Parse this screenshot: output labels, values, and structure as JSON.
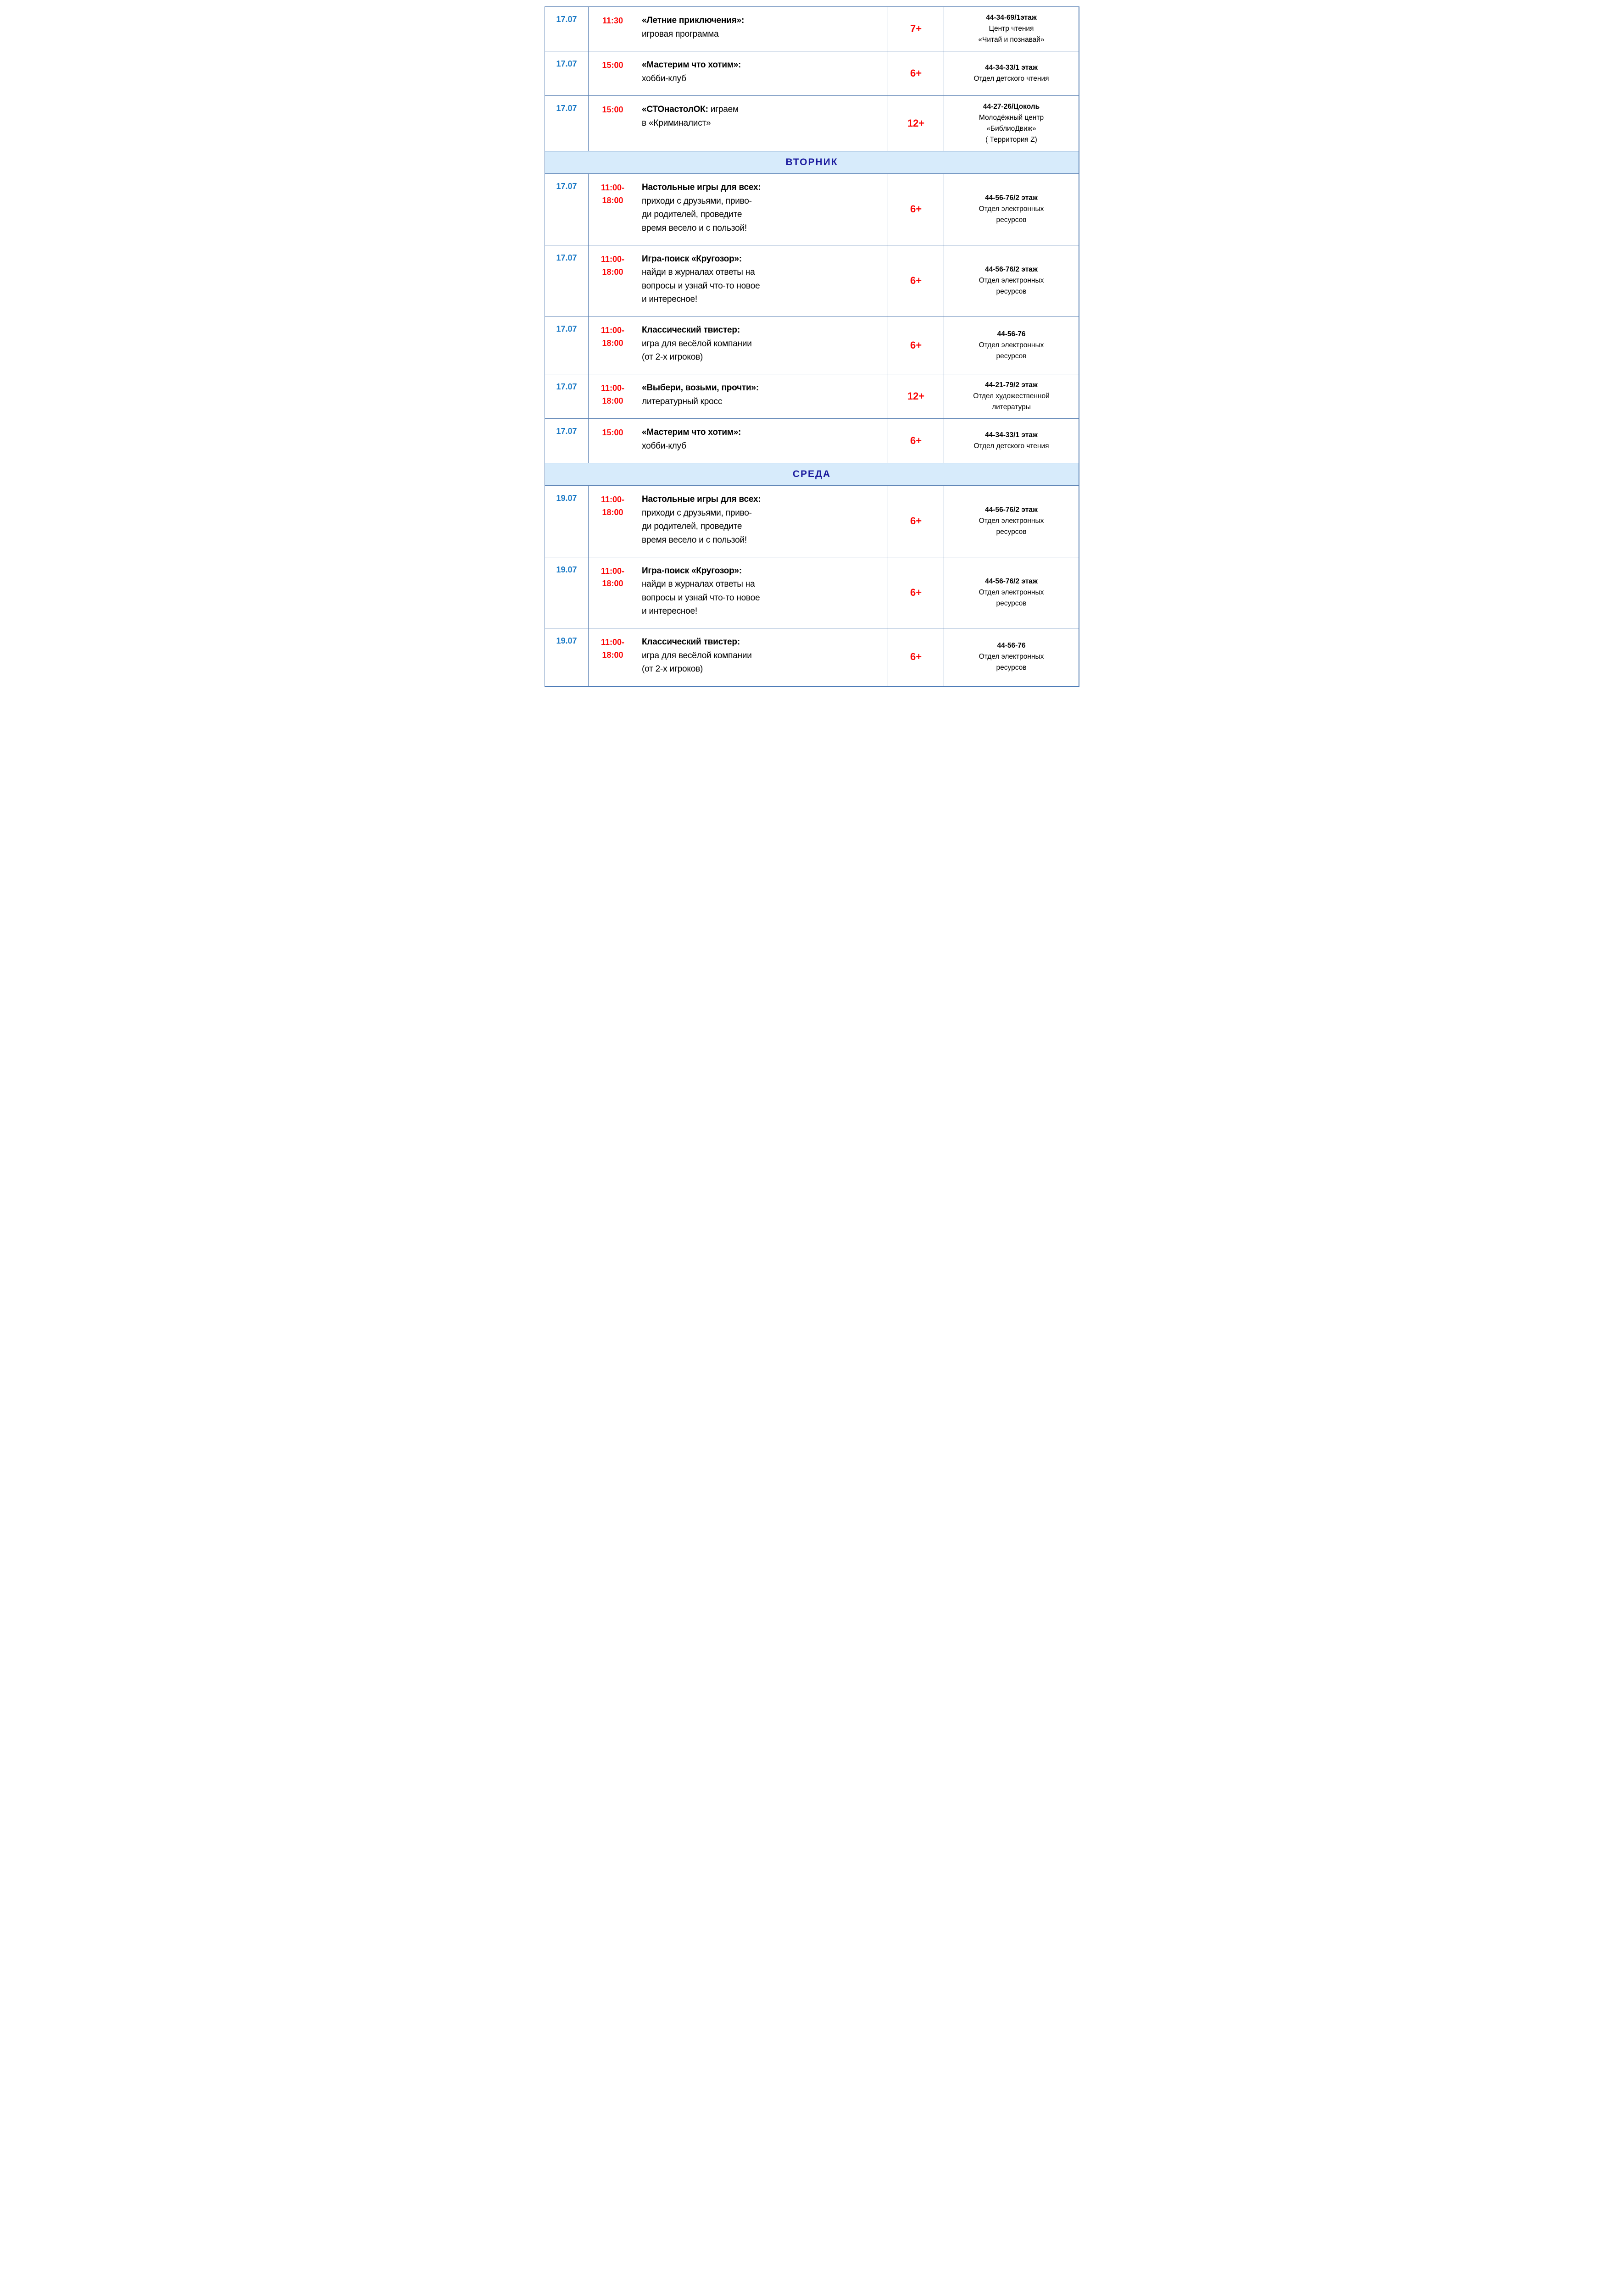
{
  "colors": {
    "date_blue": "#1777C4",
    "accent_red": "#FB0404",
    "day_header_navy": "#1B1B9E",
    "day_header_bg": "#D7EBFB",
    "grid_border_blue": "#5B82B4"
  },
  "table": {
    "rows": [
      {
        "type": "event",
        "date": "17.07",
        "time": "11:30",
        "title": "«Летние приключения»:",
        "desc": "\nигровая программа",
        "age": "7+",
        "loc_phone": "44-34-69/1этаж",
        "loc_dept": "Центр чтения\n«Читай и познавай»"
      },
      {
        "type": "event",
        "date": "17.07",
        "time": "15:00",
        "title": "«Мастерим что хотим»:",
        "desc": "\nхобби-клуб",
        "age": "6+",
        "loc_phone": "44-34-33/1 этаж",
        "loc_dept": "Отдел детского чтения"
      },
      {
        "type": "event",
        "date": "17.07",
        "time": "15:00",
        "title": "«СТОнастолОК:",
        "desc": " играем\nв «Криминалист»",
        "age": "12+",
        "loc_phone": "44-27-26/Цоколь",
        "loc_dept": "Молодёжный центр\n«БиблиоДвиж»\n( Территория Z)"
      },
      {
        "type": "day",
        "label": "ВТОРНИК"
      },
      {
        "type": "event",
        "date": "17.07",
        "time": "11:00-\n18:00",
        "title": "Настольные игры для всех:",
        "desc": "\nприходи с друзьями, приво-\nди родителей, проведите\nвремя весело и с пользой!",
        "age": "6+",
        "loc_phone": "44-56-76/2 этаж",
        "loc_dept": "Отдел электронных\nресурсов"
      },
      {
        "type": "event",
        "date": "17.07",
        "time": "11:00-\n18:00",
        "title": "Игра-поиск «Кругозор»:",
        "desc": "\nнайди в журналах ответы на\nвопросы и узнай что-то новое\nи интересное!",
        "age": "6+",
        "loc_phone": "44-56-76/2 этаж",
        "loc_dept": "Отдел электронных\nресурсов"
      },
      {
        "type": "event",
        "date": "17.07",
        "time": "11:00-\n18:00",
        "title": "Классический твистер:",
        "desc": "\nигра для весёлой компании\n(от 2-х игроков)",
        "age": "6+",
        "loc_phone": "44-56-76",
        "loc_dept": "Отдел электронных\nресурсов"
      },
      {
        "type": "event",
        "date": "17.07",
        "time": "11:00-\n18:00",
        "title": "«Выбери, возьми, прочти»:",
        "desc": "\nлитературный кросс",
        "age": "12+",
        "loc_phone": "44-21-79/2 этаж",
        "loc_dept": "Отдел художественной\nлитературы"
      },
      {
        "type": "event",
        "date": "17.07",
        "time": "15:00",
        "title": "«Мастерим что хотим»:",
        "desc": "\nхобби-клуб",
        "age": "6+",
        "loc_phone": "44-34-33/1 этаж",
        "loc_dept": "Отдел детского чтения"
      },
      {
        "type": "day",
        "label": "СРЕДА"
      },
      {
        "type": "event",
        "date": "19.07",
        "time": "11:00-\n18:00",
        "title": "Настольные игры для всех:",
        "desc": "\nприходи с друзьями, приво-\nди родителей, проведите\nвремя весело и с пользой!",
        "age": "6+",
        "loc_phone": "44-56-76/2 этаж",
        "loc_dept": "Отдел электронных\nресурсов"
      },
      {
        "type": "event",
        "date": "19.07",
        "time": "11:00-\n18:00",
        "title": "Игра-поиск «Кругозор»:",
        "desc": "\nнайди в журналах ответы на\nвопросы и узнай что-то новое\nи интересное!",
        "age": "6+",
        "loc_phone": "44-56-76/2 этаж",
        "loc_dept": "Отдел электронных\nресурсов"
      },
      {
        "type": "event",
        "date": "19.07",
        "time": "11:00-\n18:00",
        "title": "Классический твистер:",
        "desc": "\nигра для весёлой компании\n(от 2-х игроков)",
        "age": "6+",
        "loc_phone": "44-56-76",
        "loc_dept": "Отдел электронных\nресурсов"
      }
    ]
  }
}
